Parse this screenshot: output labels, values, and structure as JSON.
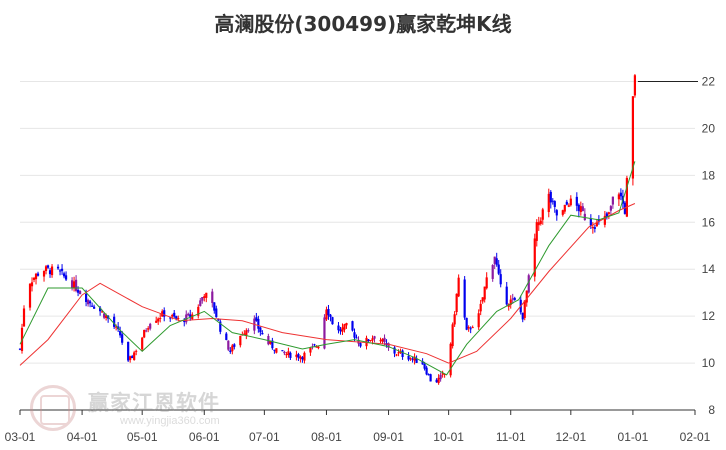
{
  "chart_data": {
    "type": "candlestick",
    "title": "高澜股份(300499)赢家乾坤K线",
    "xlabel": "",
    "ylabel": "",
    "ylim": [
      8,
      23
    ],
    "y_ticks": [
      8,
      10,
      12,
      14,
      16,
      18,
      20,
      22
    ],
    "x_tick_labels": [
      "03-01",
      "04-01",
      "05-01",
      "06-01",
      "07-01",
      "08-01",
      "09-01",
      "10-01",
      "11-01",
      "12-01",
      "01-01",
      "02-01"
    ],
    "x_tick_dates": [
      "2023-03-01",
      "2023-04-01",
      "2023-05-01",
      "2023-06-01",
      "2023-07-01",
      "2023-08-01",
      "2023-09-01",
      "2023-10-01",
      "2023-11-01",
      "2023-12-01",
      "2024-01-01",
      "2024-02-01"
    ],
    "x_range": [
      "2023-03-01",
      "2024-02-01"
    ],
    "last_price": 22,
    "close_anchors": [
      [
        "2023-03-01",
        10.6
      ],
      [
        "2023-03-04",
        13.3
      ],
      [
        "2023-03-12",
        14.0
      ],
      [
        "2023-03-20",
        13.9
      ],
      [
        "2023-03-28",
        13.3
      ],
      [
        "2023-04-05",
        12.6
      ],
      [
        "2023-04-13",
        12.0
      ],
      [
        "2023-04-20",
        11.2
      ],
      [
        "2023-04-24",
        10.0
      ],
      [
        "2023-04-28",
        10.6
      ],
      [
        "2023-05-05",
        11.8
      ],
      [
        "2023-05-12",
        12.1
      ],
      [
        "2023-05-20",
        11.8
      ],
      [
        "2023-05-27",
        12.1
      ],
      [
        "2023-06-01",
        13.0
      ],
      [
        "2023-06-06",
        12.3
      ],
      [
        "2023-06-10",
        11.2
      ],
      [
        "2023-06-14",
        10.5
      ],
      [
        "2023-06-20",
        11.3
      ],
      [
        "2023-06-26",
        11.8
      ],
      [
        "2023-07-02",
        10.9
      ],
      [
        "2023-07-10",
        10.4
      ],
      [
        "2023-07-20",
        10.3
      ],
      [
        "2023-07-28",
        10.8
      ],
      [
        "2023-08-01",
        12.4
      ],
      [
        "2023-08-06",
        11.3
      ],
      [
        "2023-08-12",
        11.6
      ],
      [
        "2023-08-18",
        10.8
      ],
      [
        "2023-08-26",
        11.2
      ],
      [
        "2023-09-02",
        10.5
      ],
      [
        "2023-09-10",
        10.3
      ],
      [
        "2023-09-18",
        10.0
      ],
      [
        "2023-09-23",
        9.1
      ],
      [
        "2023-09-30",
        9.6
      ],
      [
        "2023-10-03",
        11.5
      ],
      [
        "2023-10-06",
        13.6
      ],
      [
        "2023-10-10",
        11.3
      ],
      [
        "2023-10-16",
        12.0
      ],
      [
        "2023-10-20",
        13.6
      ],
      [
        "2023-10-24",
        14.6
      ],
      [
        "2023-10-28",
        12.7
      ],
      [
        "2023-11-03",
        12.6
      ],
      [
        "2023-11-07",
        12.0
      ],
      [
        "2023-11-11",
        14.1
      ],
      [
        "2023-11-14",
        15.8
      ],
      [
        "2023-11-20",
        17.1
      ],
      [
        "2023-11-25",
        16.1
      ],
      [
        "2023-11-30",
        16.9
      ],
      [
        "2023-12-05",
        16.6
      ],
      [
        "2023-12-10",
        16.0
      ],
      [
        "2023-12-15",
        15.9
      ],
      [
        "2023-12-20",
        16.3
      ],
      [
        "2023-12-24",
        17.6
      ],
      [
        "2023-12-28",
        16.5
      ],
      [
        "2023-12-31",
        20.2
      ],
      [
        "2024-01-02",
        22.1
      ]
    ],
    "ma_short": [
      [
        "2023-03-01",
        10.8
      ],
      [
        "2023-03-15",
        13.2
      ],
      [
        "2023-04-01",
        13.2
      ],
      [
        "2023-04-20",
        11.4
      ],
      [
        "2023-05-01",
        10.5
      ],
      [
        "2023-05-15",
        11.6
      ],
      [
        "2023-06-01",
        12.2
      ],
      [
        "2023-06-15",
        11.3
      ],
      [
        "2023-07-01",
        11.0
      ],
      [
        "2023-07-20",
        10.6
      ],
      [
        "2023-08-01",
        10.8
      ],
      [
        "2023-08-15",
        11.0
      ],
      [
        "2023-09-01",
        10.7
      ],
      [
        "2023-09-15",
        10.2
      ],
      [
        "2023-09-30",
        9.5
      ],
      [
        "2023-10-10",
        10.8
      ],
      [
        "2023-10-25",
        12.2
      ],
      [
        "2023-11-05",
        12.7
      ],
      [
        "2023-11-20",
        15.0
      ],
      [
        "2023-12-01",
        16.3
      ],
      [
        "2023-12-15",
        16.1
      ],
      [
        "2023-12-25",
        16.4
      ],
      [
        "2024-01-02",
        18.6
      ]
    ],
    "ma_long": [
      [
        "2023-03-01",
        9.9
      ],
      [
        "2023-03-15",
        11.0
      ],
      [
        "2023-04-01",
        12.9
      ],
      [
        "2023-04-10",
        13.4
      ],
      [
        "2023-05-01",
        12.4
      ],
      [
        "2023-05-20",
        11.8
      ],
      [
        "2023-06-05",
        11.9
      ],
      [
        "2023-06-20",
        11.8
      ],
      [
        "2023-07-10",
        11.3
      ],
      [
        "2023-08-01",
        11.0
      ],
      [
        "2023-09-01",
        10.8
      ],
      [
        "2023-09-20",
        10.4
      ],
      [
        "2023-10-01",
        10.0
      ],
      [
        "2023-10-15",
        10.5
      ],
      [
        "2023-11-01",
        11.9
      ],
      [
        "2023-11-20",
        13.9
      ],
      [
        "2023-12-10",
        15.8
      ],
      [
        "2023-12-25",
        16.5
      ],
      [
        "2024-01-02",
        16.8
      ]
    ],
    "colors": {
      "up": "#ff0000",
      "down": "#0000ee",
      "purple": "#8c1aa0",
      "ma_short": "#2e9a2e",
      "ma_long": "#ee3333",
      "grid": "#e6e6e6",
      "axis": "#333333"
    }
  },
  "watermark": {
    "name": "赢家江恩软件",
    "url": "www.yingjia360.com"
  }
}
